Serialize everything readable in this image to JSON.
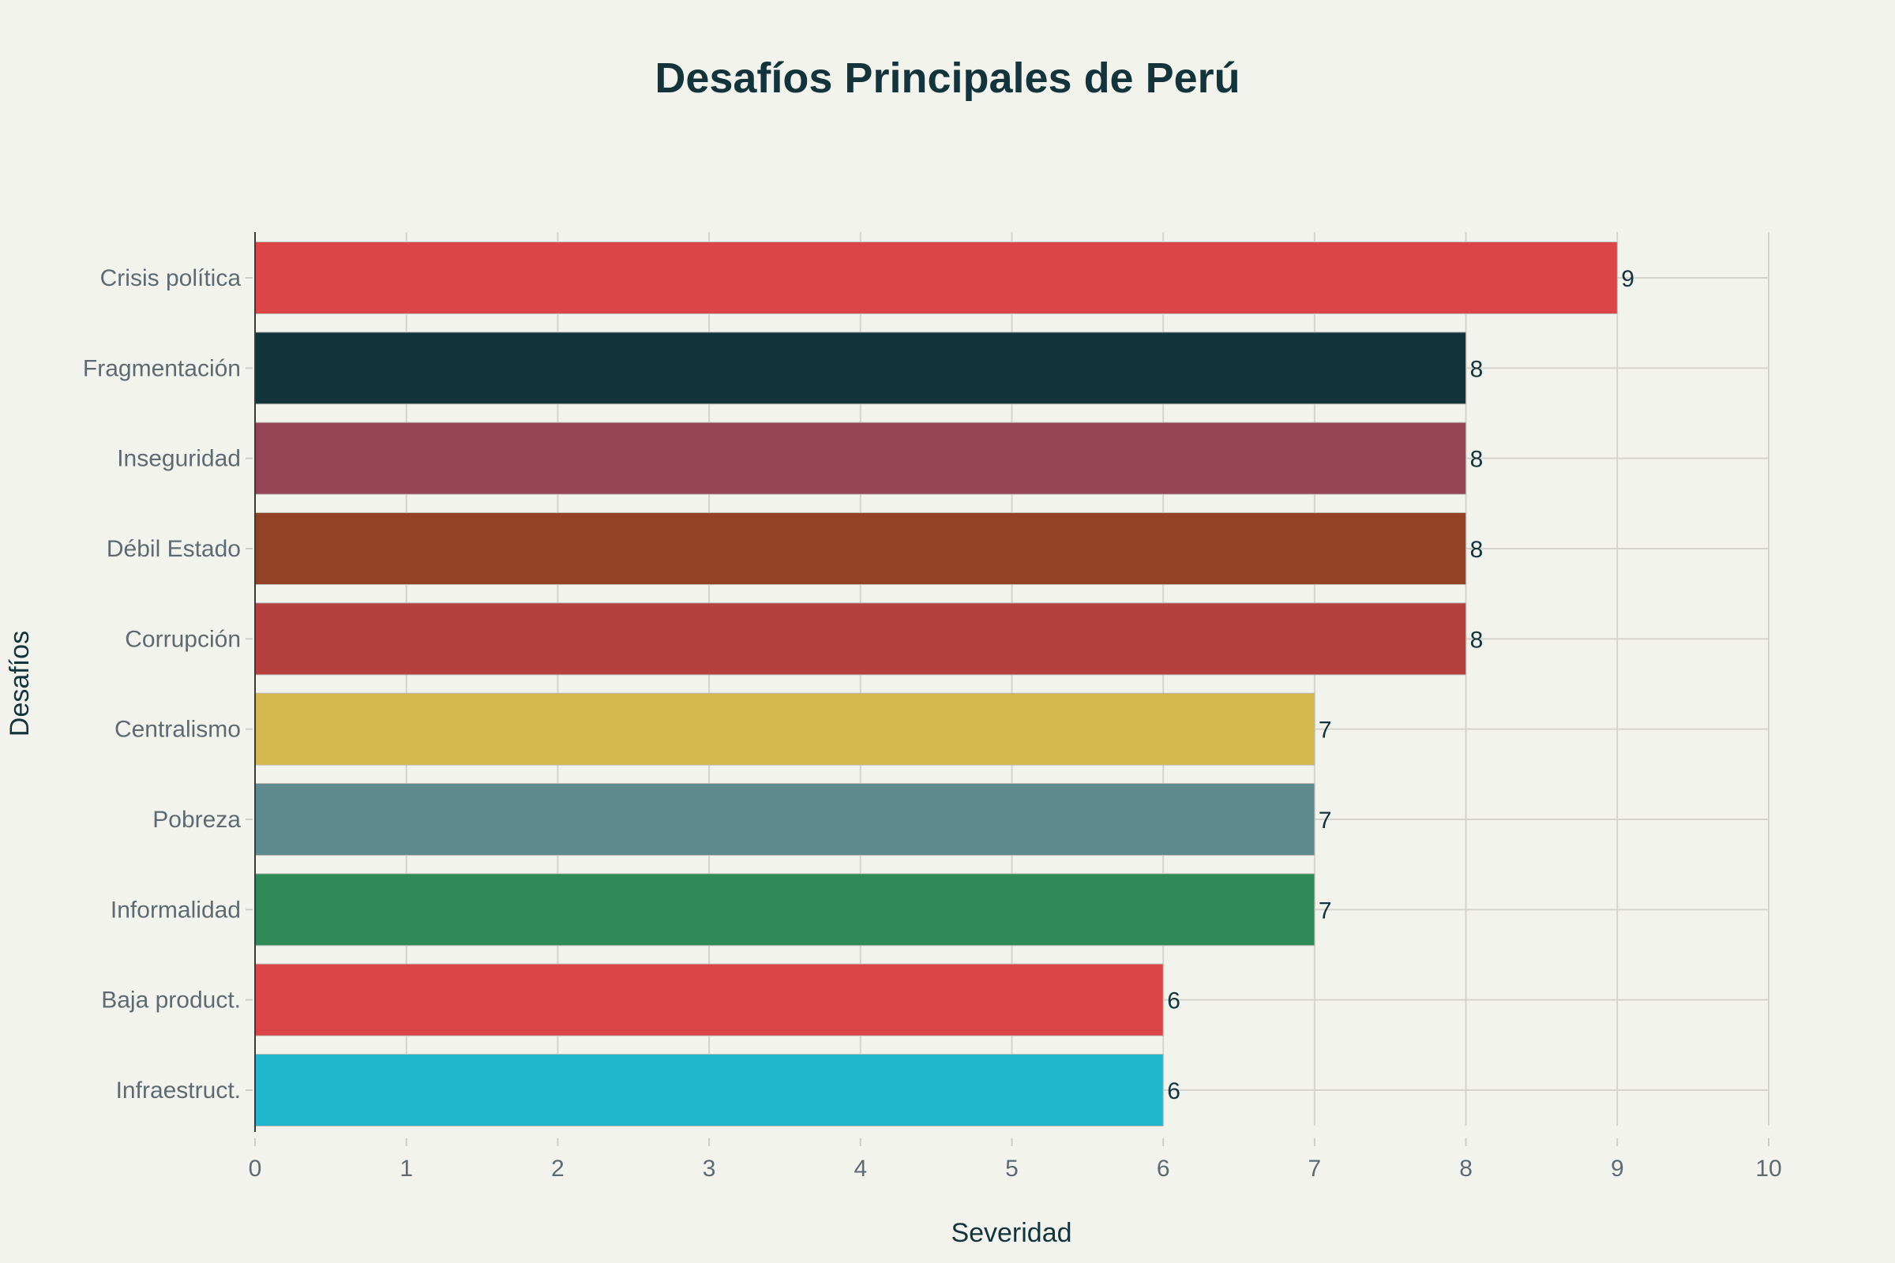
{
  "chart_data": {
    "type": "bar",
    "orientation": "horizontal",
    "title": "Desafíos Principales de Perú",
    "xlabel": "Severidad",
    "ylabel": "Desafíos",
    "xlim": [
      0,
      10
    ],
    "xticks": [
      "0",
      "1",
      "2",
      "3",
      "4",
      "5",
      "6",
      "7",
      "8",
      "9",
      "10"
    ],
    "grid": true,
    "categories": [
      "Crisis política",
      "Fragmentación",
      "Inseguridad",
      "Débil Estado",
      "Corrupción",
      "Centralismo",
      "Pobreza",
      "Informalidad",
      "Baja product.",
      "Infraestruct."
    ],
    "values": [
      9,
      8,
      8,
      8,
      8,
      7,
      7,
      7,
      6,
      6
    ],
    "colors": [
      "#db4548",
      "#13343b",
      "#944454",
      "#944225",
      "#b5403f",
      "#d3b94d",
      "#5e8a8f",
      "#2e8b57",
      "#db4548",
      "#21b8cd"
    ]
  }
}
